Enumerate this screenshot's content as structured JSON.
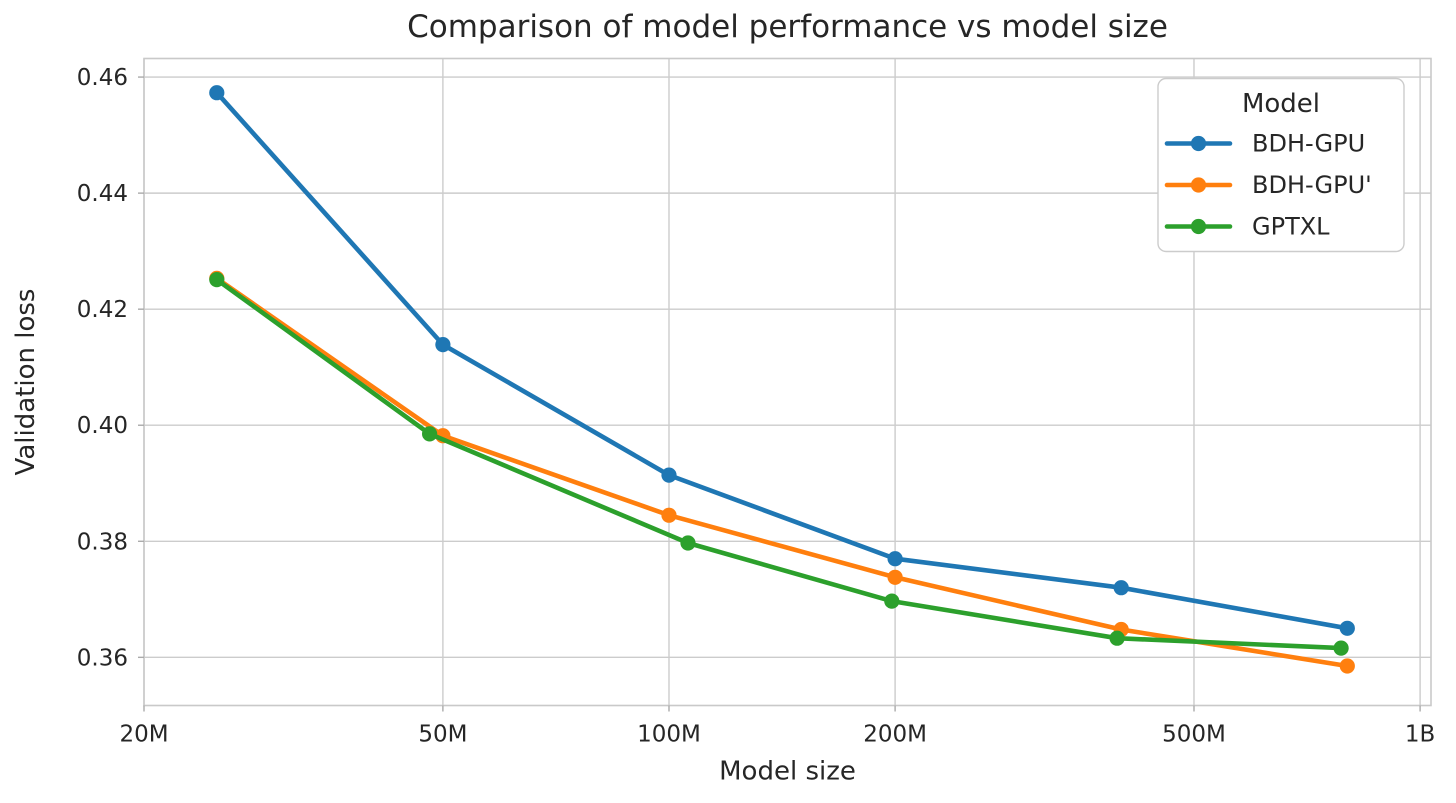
{
  "figure": {
    "background": "#ffffff",
    "text_color": "#262626",
    "grid_color": "#cccccc",
    "spine_color": "#c9c9c9",
    "tick_color": "#aaaaaa"
  },
  "chart_data": {
    "type": "line",
    "title": "Comparison of model performance vs model size",
    "xlabel": "Model size",
    "ylabel": "Validation loss",
    "x_scale": "log",
    "grid": true,
    "xlim": [
      20000000,
      1034000000
    ],
    "ylim": [
      0.3517,
      0.4632
    ],
    "x_ticks": [
      20000000,
      50000000,
      100000000,
      200000000,
      500000000,
      1000000000
    ],
    "x_tick_labels": [
      "20M",
      "50M",
      "100M",
      "200M",
      "500M",
      "1B"
    ],
    "y_ticks": [
      0.46,
      0.44,
      0.42,
      0.4,
      0.38,
      0.36
    ],
    "y_tick_labels": [
      "0.46",
      "0.44",
      "0.42",
      "0.40",
      "0.38",
      "0.36"
    ],
    "legend_title": "Model",
    "legend_position": "upper right",
    "series": [
      {
        "name": "BDH-GPU",
        "color": "#1f77b4",
        "x": [
          25000000,
          50000000,
          100000000,
          200000000,
          400000000,
          800000000
        ],
        "y": [
          0.4573,
          0.4139,
          0.3914,
          0.377,
          0.372,
          0.365
        ]
      },
      {
        "name": "BDH-GPU'",
        "color": "#ff7f0e",
        "x": [
          25000000,
          50000000,
          100000000,
          200000000,
          400000000,
          800000000
        ],
        "y": [
          0.4253,
          0.3982,
          0.3845,
          0.3738,
          0.3648,
          0.3585
        ]
      },
      {
        "name": "GPTXL",
        "color": "#2ca02c",
        "x": [
          25000000,
          48000000,
          106000000,
          198000000,
          395000000,
          785000000
        ],
        "y": [
          0.4251,
          0.3985,
          0.3797,
          0.3697,
          0.3633,
          0.3616
        ]
      }
    ]
  }
}
